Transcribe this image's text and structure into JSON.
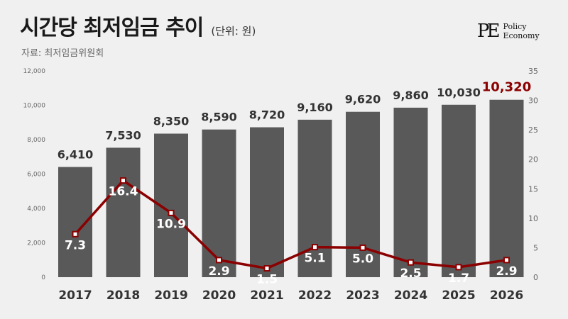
{
  "header": {
    "title": "시간당 최저임금 추이",
    "unit": "(단위: 원)",
    "source": "자료: 최저임금위원회"
  },
  "logo": {
    "mark": "PE",
    "line1": "Policy",
    "line2": "Economy"
  },
  "colors": {
    "bar": "#595959",
    "line": "#8b0000",
    "highlight_label": "#8b0000",
    "bar_label": "#333333",
    "line_label": "#ffffff",
    "tick": "#666666"
  },
  "chart_data": {
    "type": "bar",
    "categories": [
      "2017",
      "2018",
      "2019",
      "2020",
      "2021",
      "2022",
      "2023",
      "2024",
      "2025",
      "2026"
    ],
    "series": [
      {
        "type": "bar",
        "axis": "left",
        "values": [
          6410,
          7530,
          8350,
          8590,
          8720,
          9160,
          9620,
          9860,
          10030,
          10320
        ],
        "labels": [
          "6,410",
          "7,530",
          "8,350",
          "8,590",
          "8,720",
          "9,160",
          "9,620",
          "9,860",
          "10,030",
          "10,320"
        ]
      },
      {
        "type": "line",
        "axis": "right",
        "values": [
          7.3,
          16.4,
          10.9,
          2.9,
          1.5,
          5.1,
          5.0,
          2.5,
          1.7,
          2.9
        ],
        "labels": [
          "7.3",
          "16.4",
          "10.9",
          "2.9",
          "1.5",
          "5.1",
          "5.0",
          "2.5",
          "1.7",
          "2.9"
        ]
      }
    ],
    "y_left": {
      "range": [
        0,
        12000
      ],
      "ticks": [
        0,
        2000,
        4000,
        6000,
        8000,
        10000,
        12000
      ],
      "tick_labels": [
        "0",
        "2,000",
        "4,000",
        "6,000",
        "8,000",
        "10,000",
        "12,000"
      ]
    },
    "y_right": {
      "range": [
        0,
        35
      ],
      "ticks": [
        0,
        5,
        10,
        15,
        20,
        25,
        30,
        35
      ],
      "tick_labels": [
        "0",
        "5",
        "10",
        "15",
        "20",
        "25",
        "30",
        "35"
      ]
    },
    "grid": false,
    "highlight_category": "2026"
  }
}
